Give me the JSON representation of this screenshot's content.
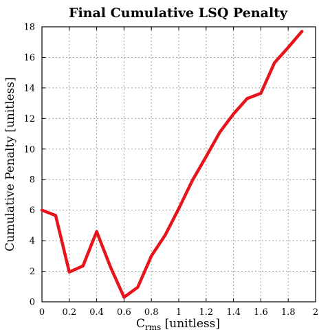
{
  "chart_data": {
    "type": "line",
    "title": "Final Cumulative LSQ Penalty",
    "xlabel_main": "C",
    "xlabel_sub": "rms",
    "xlabel_rest": " [unitless]",
    "ylabel": "Cumulative Penalty [unitless]",
    "xlim": [
      0,
      2
    ],
    "ylim": [
      0,
      18
    ],
    "xticks": [
      "0",
      "0.2",
      "0.4",
      "0.6",
      "0.8",
      "1",
      "1.2",
      "1.4",
      "1.6",
      "1.8",
      "2"
    ],
    "yticks": [
      "0",
      "2",
      "4",
      "6",
      "8",
      "10",
      "12",
      "14",
      "16",
      "18"
    ],
    "grid": true,
    "series": [
      {
        "color": "#e8141b",
        "x": [
          0,
          0.1,
          0.2,
          0.3,
          0.4,
          0.5,
          0.6,
          0.7,
          0.8,
          0.9,
          1.0,
          1.1,
          1.2,
          1.3,
          1.4,
          1.5,
          1.6,
          1.7,
          1.8,
          1.9
        ],
        "y": [
          6.0,
          5.65,
          1.95,
          2.35,
          4.6,
          2.3,
          0.3,
          0.95,
          3.0,
          4.35,
          6.1,
          7.95,
          9.5,
          11.1,
          12.3,
          13.3,
          13.65,
          15.65,
          16.65,
          17.7
        ]
      }
    ]
  }
}
